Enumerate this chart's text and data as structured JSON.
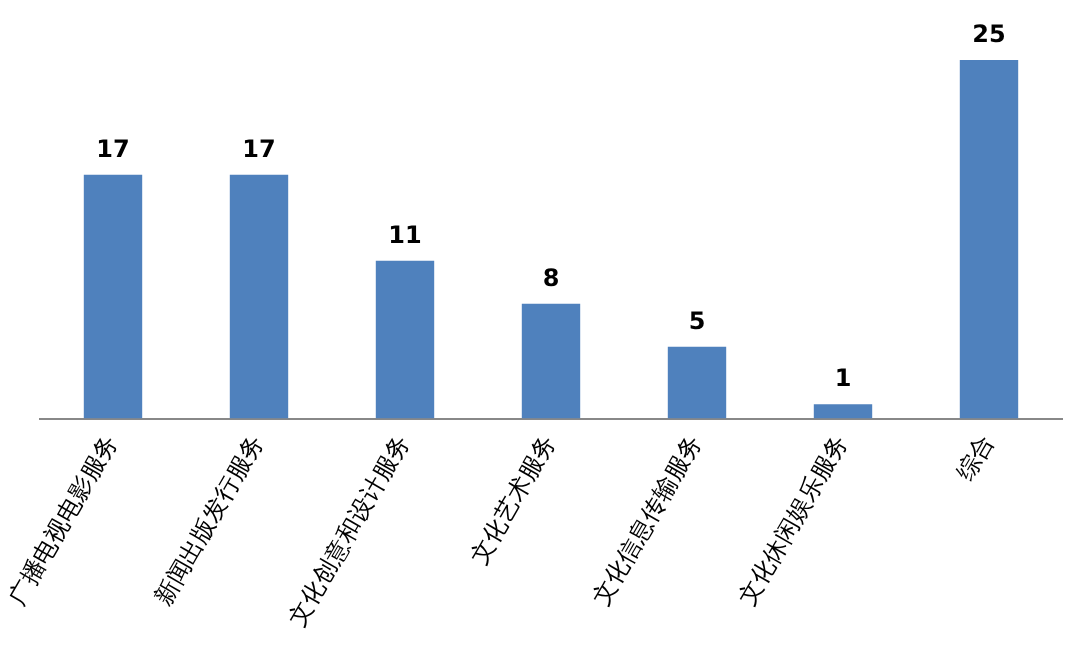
{
  "chart_data": {
    "type": "bar",
    "categories": [
      "广播电视电影服务",
      "新闻出版发行服务",
      "文化创意和设计服务",
      "文化艺术服务",
      "文化信息传输服务",
      "文化休闲娱乐服务",
      "综合"
    ],
    "values": [
      17,
      17,
      11,
      8,
      5,
      1,
      25
    ],
    "color": "#4f81bd",
    "data_labels": true,
    "grid": false,
    "legend": false
  }
}
